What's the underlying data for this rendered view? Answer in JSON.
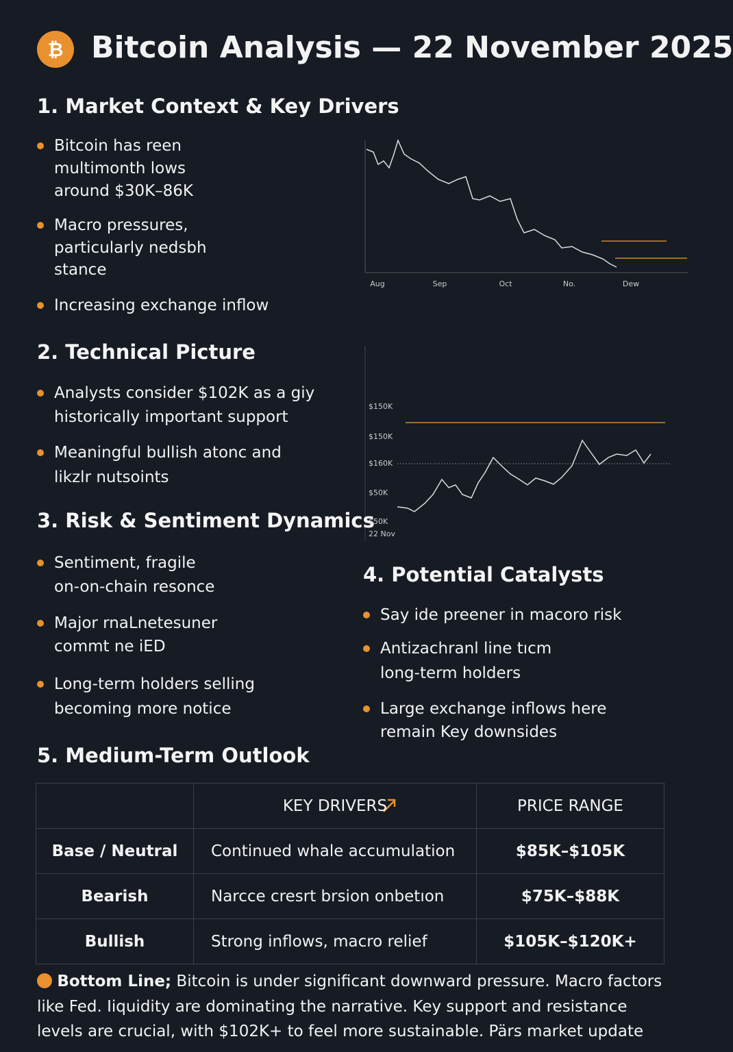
{
  "header": {
    "title": "Bitcoin Analysis — 22 November 2025"
  },
  "sections": [
    {
      "title": "1. Market Context & Key Drivers",
      "bullets": [
        [
          "Bitcoin has reen",
          "multimonth lows",
          "around $30K–86K"
        ],
        [
          "Macro pressures,",
          "particularly nedsbh",
          "stance"
        ],
        [
          "Increasing exchange inflow"
        ]
      ]
    },
    {
      "title": "2. Technical Picture",
      "bullets": [
        [
          "Analysts consider $102K as a giy",
          "historically important support"
        ],
        [
          "Meaningful bullish atonc and",
          "likzlr nutsoints"
        ]
      ]
    },
    {
      "title": "3. Risk & Sentiment Dynamics",
      "bullets": [
        [
          "Sentiment, fragile",
          "on-on-chain resonce"
        ],
        [
          "Major rnaLnetesuner",
          "commt ne iED"
        ],
        [
          "Long-term holders selling",
          "becoming more notice"
        ]
      ]
    },
    {
      "title": "4. Potential Catalysts",
      "bullets": [
        [
          "Say ide preener in macoro risk"
        ],
        [
          "Antizachranl line tıcm",
          "long-term holders"
        ],
        [
          "Large exchange inflows here",
          "remain Key downsides"
        ]
      ]
    },
    {
      "title": "5. Medium-Term Outlook",
      "bullets": []
    }
  ],
  "chart1": {
    "x_labels": [
      "Aug",
      "Sep",
      "Oct",
      "No.",
      "Dew"
    ]
  },
  "chart2": {
    "y_labels": [
      "$150K",
      "$150K",
      "$160K",
      "$50K",
      "$50K"
    ],
    "x_label": "22 Nov"
  },
  "table": {
    "headers": [
      "KEY DRIVERS",
      "PRICE RANGE"
    ],
    "rows": [
      [
        "Base / Neutral",
        "Continued whale accumulation",
        "$85K–$105K"
      ],
      [
        "Bearish",
        "Narcce cresrt brsion onbetıon",
        "$75K–$88K"
      ],
      [
        "Bullish",
        "Strong inflows, macro relief",
        "$105K–$120K+"
      ]
    ]
  },
  "bottom_line": {
    "label": "Bottom Line;",
    "lines": [
      " Bitcoin is under significant downward pressure. Macro factors",
      "like Fed. Iiquidity are dominating the narrative. Key support and resistance",
      "levels are crucial, with $102K+ to feel more sustainable. Pärs market update"
    ]
  }
}
